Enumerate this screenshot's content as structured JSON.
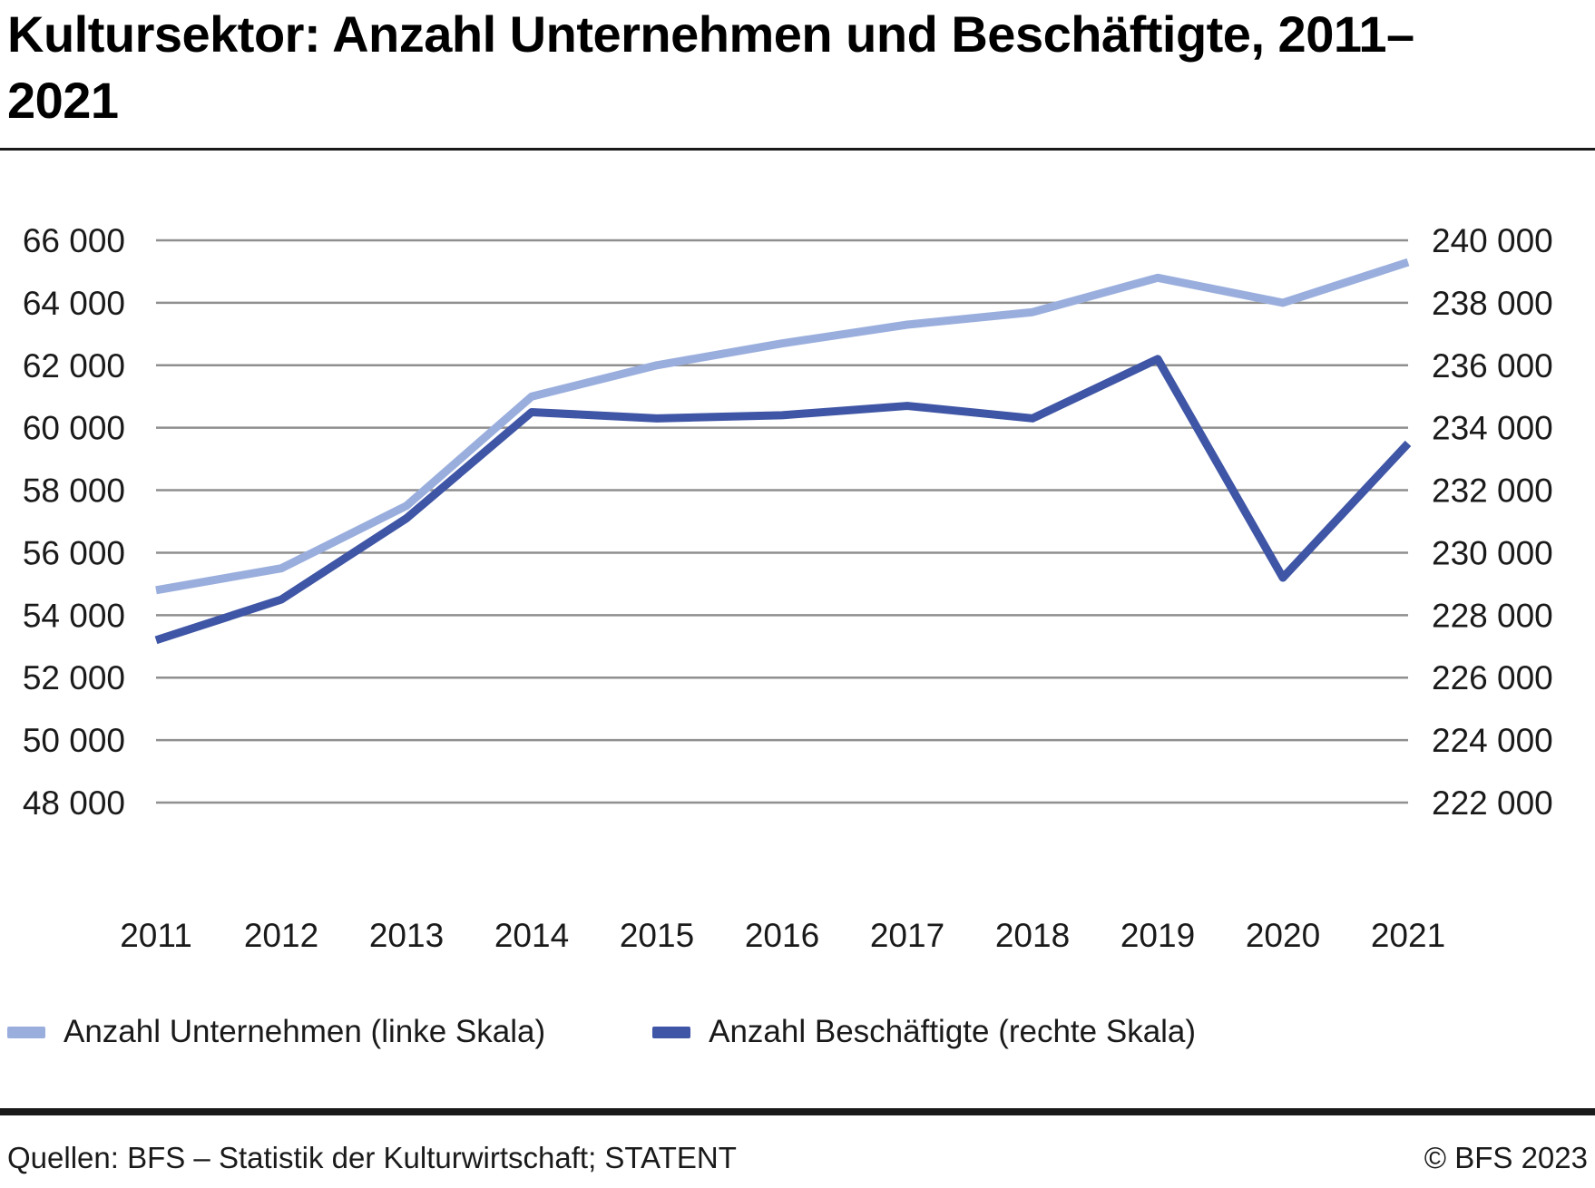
{
  "title": "Kultursektor: Anzahl Unternehmen und Beschäftigte, 2011–2021",
  "legend": {
    "items": [
      {
        "label": "Anzahl Unternehmen (linke Skala)",
        "color": "#9aaedd"
      },
      {
        "label": "Anzahl Beschäftigte (rechte Skala)",
        "color": "#3f55a5"
      }
    ]
  },
  "footer": {
    "sources": "Quellen: BFS – Statistik der Kulturwirtschaft; STATENT",
    "copyright": "© BFS 2023"
  },
  "colors": {
    "unternehmen_line": "#9aaedd",
    "beschaeftigte_line": "#3f55a5",
    "gridline": "#8f8f8f",
    "text": "#1a1a1a"
  },
  "chart_data": {
    "type": "line",
    "title": "Kultursektor: Anzahl Unternehmen und Beschäftigte, 2011–2021",
    "x_categories": [
      "2011",
      "2012",
      "2013",
      "2014",
      "2015",
      "2016",
      "2017",
      "2018",
      "2019",
      "2020",
      "2021"
    ],
    "series": [
      {
        "name": "Anzahl Unternehmen (linke Skala)",
        "axis": "left",
        "color": "#9aaedd",
        "values": [
          54800,
          55500,
          57500,
          61000,
          62000,
          62700,
          63300,
          63700,
          64800,
          64000,
          65300
        ]
      },
      {
        "name": "Anzahl Beschäftigte (rechte Skala)",
        "axis": "right",
        "color": "#3f55a5",
        "values": [
          227200,
          228500,
          231100,
          234500,
          234300,
          234400,
          234700,
          234300,
          236200,
          229200,
          233500
        ]
      }
    ],
    "left_axis": {
      "min": 48000,
      "max": 66000,
      "step": 2000,
      "tick_labels": [
        "66 000",
        "64 000",
        "62 000",
        "60 000",
        "58 000",
        "56 000",
        "54 000",
        "52 000",
        "50 000",
        "48 000"
      ]
    },
    "right_axis": {
      "min": 222000,
      "max": 240000,
      "step": 2000,
      "tick_labels": [
        "240 000",
        "238 000",
        "236 000",
        "234 000",
        "232 000",
        "230 000",
        "228 000",
        "226 000",
        "224 000",
        "222 000"
      ]
    },
    "grid": true,
    "legend_position": "bottom"
  }
}
